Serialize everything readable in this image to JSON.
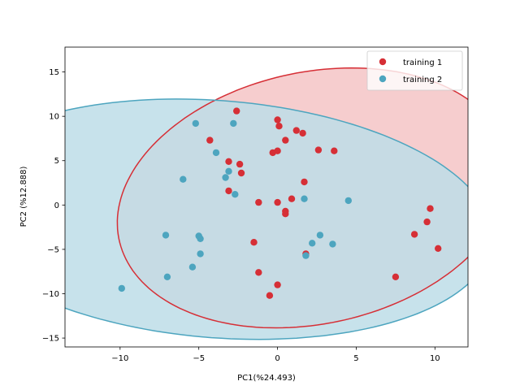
{
  "chart_data": {
    "type": "scatter",
    "title": "",
    "xlabel": "PC1(%24.493)",
    "ylabel": "PC2 (%12.888)",
    "xlim": [
      -13.5,
      12.1
    ],
    "ylim": [
      -16.0,
      17.8
    ],
    "xticks": [
      -10,
      -5,
      0,
      5,
      10
    ],
    "yticks": [
      -15,
      -10,
      -5,
      0,
      5,
      10,
      15
    ],
    "grid": false,
    "legend_position": "top-right",
    "series": [
      {
        "name": "training 1",
        "color": "#d62f36",
        "ellipse_fill": "#f4c4c6",
        "ellipse": {
          "center": [
            2.3,
            0.8
          ],
          "radius_x": 11.8,
          "radius_y": 15.2,
          "angle_deg": -25
        },
        "points": [
          [
            -2.6,
            10.6
          ],
          [
            0.0,
            9.6
          ],
          [
            0.1,
            8.9
          ],
          [
            1.2,
            8.4
          ],
          [
            1.6,
            8.1
          ],
          [
            -4.3,
            7.3
          ],
          [
            0.5,
            7.3
          ],
          [
            2.6,
            6.2
          ],
          [
            3.6,
            6.1
          ],
          [
            -0.3,
            5.9
          ],
          [
            0.0,
            6.1
          ],
          [
            -3.1,
            4.9
          ],
          [
            -2.4,
            4.6
          ],
          [
            -2.3,
            3.6
          ],
          [
            1.7,
            2.6
          ],
          [
            -3.1,
            1.6
          ],
          [
            0.9,
            0.7
          ],
          [
            -1.2,
            0.3
          ],
          [
            0.0,
            0.3
          ],
          [
            0.5,
            -0.7
          ],
          [
            0.5,
            -1.0
          ],
          [
            -1.5,
            -4.2
          ],
          [
            1.8,
            -5.5
          ],
          [
            -1.2,
            -7.6
          ],
          [
            0.0,
            -9.0
          ],
          [
            -0.5,
            -10.2
          ],
          [
            9.7,
            -0.4
          ],
          [
            9.5,
            -1.9
          ],
          [
            8.7,
            -3.3
          ],
          [
            10.2,
            -4.9
          ],
          [
            7.5,
            -8.1
          ]
        ]
      },
      {
        "name": "training 2",
        "color": "#4da5bf",
        "ellipse_fill": "#bddde7",
        "ellipse": {
          "center": [
            -3.8,
            -1.6
          ],
          "radius_x": 13.2,
          "radius_y": 17.7,
          "angle_deg": 75
        },
        "points": [
          [
            -5.2,
            9.2
          ],
          [
            -2.8,
            9.2
          ],
          [
            -3.9,
            5.9
          ],
          [
            -3.1,
            3.8
          ],
          [
            -3.3,
            3.1
          ],
          [
            -6.0,
            2.9
          ],
          [
            -2.7,
            1.2
          ],
          [
            1.7,
            0.7
          ],
          [
            4.5,
            0.5
          ],
          [
            -7.1,
            -3.4
          ],
          [
            -5.0,
            -3.5
          ],
          [
            -4.9,
            -3.8
          ],
          [
            2.7,
            -3.4
          ],
          [
            2.2,
            -4.3
          ],
          [
            3.5,
            -4.4
          ],
          [
            -4.9,
            -5.5
          ],
          [
            1.8,
            -5.7
          ],
          [
            -5.4,
            -7.0
          ],
          [
            -7.0,
            -8.1
          ],
          [
            -9.9,
            -9.4
          ]
        ]
      }
    ]
  }
}
